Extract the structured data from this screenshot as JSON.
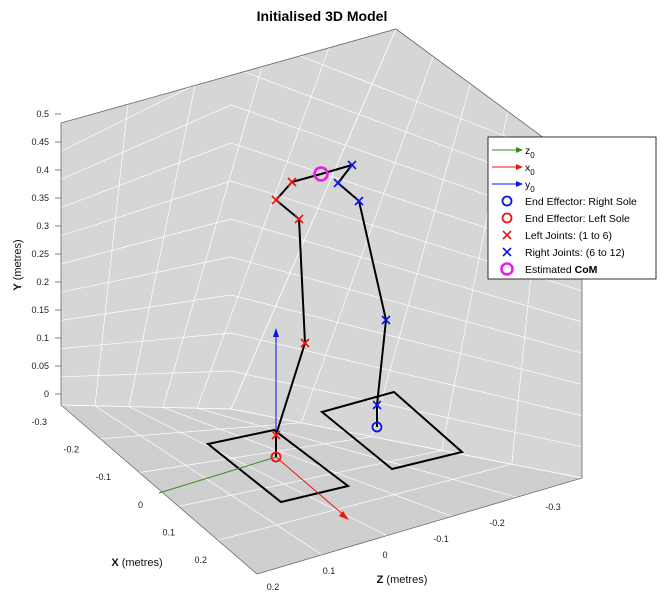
{
  "chart_data": {
    "type": "3d-line-scatter",
    "title": "Initialised 3D Model",
    "axes": {
      "x": {
        "label_bold": "X",
        "label_rest": " (metres)",
        "ticks": [
          "-0.3",
          "-0.2",
          "-0.1",
          "0",
          "0.1",
          "0.2"
        ]
      },
      "y": {
        "label_bold": "Y",
        "label_rest": " (metres)",
        "ticks": [
          "0",
          "0.05",
          "0.1",
          "0.15",
          "0.2",
          "0.25",
          "0.3",
          "0.35",
          "0.4",
          "0.45",
          "0.5"
        ]
      },
      "z": {
        "label_bold": "Z",
        "label_rest": " (metres)",
        "ticks": [
          "0.2",
          "0.1",
          "0",
          "-0.1",
          "-0.2",
          "-0.3"
        ]
      }
    },
    "grid": true,
    "legend_position": "right",
    "legend": [
      {
        "kind": "arrow",
        "color": "#3a8a1c",
        "text": "z",
        "sub": "0"
      },
      {
        "kind": "arrow",
        "color": "#e8180e",
        "text": "x",
        "sub": "0"
      },
      {
        "kind": "arrow",
        "color": "#0a14e6",
        "text": "y",
        "sub": "0"
      },
      {
        "kind": "circle",
        "color": "#0a14e6",
        "text": "End Effector: Right Sole"
      },
      {
        "kind": "circle",
        "color": "#e8180e",
        "text": "End Effector: Left Sole"
      },
      {
        "kind": "cross",
        "color": "#e8180e",
        "text": "Left Joints: (1 to 6)"
      },
      {
        "kind": "cross",
        "color": "#0a14e6",
        "text": "Right Joints: (6 to 12)"
      },
      {
        "kind": "bigcircle",
        "color": "#e61ee6",
        "text": "Estimated ",
        "bold": "CoM"
      }
    ],
    "series": [
      {
        "name": "Left Joints: (1 to 6)",
        "color": "#e8180e",
        "points": [
          [
            0,
            0.02,
            0
          ],
          [
            0,
            0.1,
            0
          ],
          [
            0,
            0.3,
            0.01
          ],
          [
            0,
            0.36,
            0.04
          ],
          [
            0,
            0.38,
            0.05
          ]
        ]
      },
      {
        "name": "Right Joints: (6 to 12)",
        "color": "#0a14e6",
        "points": [
          [
            0,
            0.02,
            -0.2
          ],
          [
            0,
            0.1,
            -0.22
          ],
          [
            0,
            0.3,
            -0.22
          ],
          [
            0,
            0.37,
            -0.24
          ],
          [
            0,
            0.4,
            -0.25
          ]
        ]
      },
      {
        "name": "End Effector: Left Sole",
        "color": "#e8180e",
        "points": [
          [
            0,
            0,
            0
          ]
        ]
      },
      {
        "name": "End Effector: Right Sole",
        "color": "#0a14e6",
        "points": [
          [
            0,
            0,
            -0.2
          ]
        ]
      },
      {
        "name": "Estimated CoM",
        "color": "#e61ee6",
        "points": [
          [
            0,
            0.38,
            -0.12
          ]
        ]
      }
    ]
  }
}
